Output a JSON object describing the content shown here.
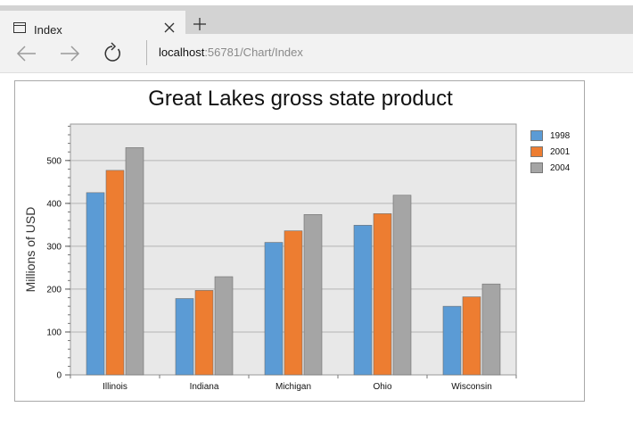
{
  "browser": {
    "tab_title": "Index",
    "address": {
      "host": "localhost",
      "path": ":56781/Chart/Index"
    }
  },
  "chart_data": {
    "type": "bar",
    "title": "Great Lakes gross state product",
    "xlabel": "",
    "ylabel": "Millions of USD",
    "categories": [
      "Illinois",
      "Indiana",
      "Michigan",
      "Ohio",
      "Wisconsin"
    ],
    "series": [
      {
        "name": "1998",
        "color": "#5b9bd5",
        "values": [
          425,
          178,
          309,
          349,
          160
        ]
      },
      {
        "name": "2001",
        "color": "#ed7d31",
        "values": [
          477,
          197,
          336,
          376,
          182
        ]
      },
      {
        "name": "2004",
        "color": "#a5a5a5",
        "values": [
          530,
          229,
          374,
          419,
          212
        ]
      }
    ],
    "ylim": [
      0,
      585
    ],
    "yticks": [
      0,
      100,
      200,
      300,
      400,
      500
    ],
    "grid": true,
    "legend_position": "right",
    "plot_background": "#e8e8e8"
  }
}
